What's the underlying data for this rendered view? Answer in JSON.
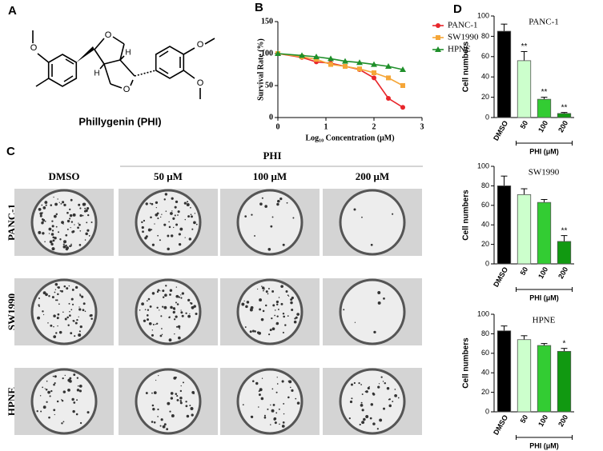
{
  "panel_labels": [
    "A",
    "B",
    "C",
    "D"
  ],
  "molecule": {
    "name": "Phillygenin (PHI)",
    "atoms": [
      "O",
      "O",
      "O",
      "O",
      "O",
      "H",
      "H"
    ]
  },
  "colony_assay": {
    "group_label": "PHI",
    "columns": [
      "DMSO",
      "50 μM",
      "100 μM",
      "200 μM"
    ],
    "rows": [
      "PANC-1",
      "SW1990",
      "HPNE"
    ]
  },
  "chart_data": [
    {
      "type": "line",
      "xlabel": "Log₁₀ Concentration (μM)",
      "ylabel": "Survival Rate (%)",
      "xlim": [
        0,
        3
      ],
      "xticks": [
        0,
        1,
        2,
        3
      ],
      "ylim": [
        0,
        150
      ],
      "yticks": [
        0,
        50,
        100,
        150
      ],
      "legend": "upper right",
      "x": [
        0,
        0.5,
        0.8,
        1.1,
        1.4,
        1.7,
        2,
        2.3,
        2.6
      ],
      "series": [
        {
          "name": "PANC-1",
          "color": "#e8262b",
          "marker": "circle",
          "values": [
            100,
            94,
            87,
            85,
            80,
            75,
            62,
            30,
            16
          ]
        },
        {
          "name": "SW1990",
          "color": "#f5a638",
          "marker": "square",
          "values": [
            100,
            95,
            91,
            83,
            80,
            76,
            70,
            62,
            50
          ]
        },
        {
          "name": "HPNE",
          "color": "#1f8f2a",
          "marker": "triangle",
          "values": [
            100,
            97,
            95,
            92,
            88,
            86,
            83,
            80,
            75
          ]
        }
      ]
    },
    {
      "type": "bar",
      "title": "PANC-1",
      "ylabel": "Cell numbers",
      "group_label": "PHI (μM)",
      "categories": [
        "DMSO",
        "50",
        "100",
        "200"
      ],
      "values": [
        85,
        56,
        18,
        4
      ],
      "errors": [
        7,
        9,
        2,
        1
      ],
      "annotations": [
        null,
        "**",
        "**",
        "**"
      ],
      "colors": [
        "#000000",
        "#ccffcc",
        "#33cc33",
        "#119911"
      ],
      "ylim": [
        0,
        100
      ],
      "yticks": [
        0,
        20,
        40,
        60,
        80,
        100
      ]
    },
    {
      "type": "bar",
      "title": "SW1990",
      "ylabel": "Cell numbers",
      "group_label": "PHI (μM)",
      "categories": [
        "DMSO",
        "50",
        "100",
        "200"
      ],
      "values": [
        80,
        71,
        63,
        23
      ],
      "errors": [
        10,
        6,
        3,
        6
      ],
      "annotations": [
        null,
        null,
        null,
        "**"
      ],
      "colors": [
        "#000000",
        "#ccffcc",
        "#33cc33",
        "#119911"
      ],
      "ylim": [
        0,
        100
      ],
      "yticks": [
        0,
        20,
        40,
        60,
        80,
        100
      ]
    },
    {
      "type": "bar",
      "title": "HPNE",
      "ylabel": "Cell numbers",
      "group_label": "PHI (μM)",
      "categories": [
        "DMSO",
        "50",
        "100",
        "200"
      ],
      "values": [
        83,
        74,
        68,
        62
      ],
      "errors": [
        5,
        4,
        2,
        3
      ],
      "annotations": [
        null,
        null,
        null,
        "*"
      ],
      "colors": [
        "#000000",
        "#ccffcc",
        "#33cc33",
        "#119911"
      ],
      "ylim": [
        0,
        100
      ],
      "yticks": [
        0,
        20,
        40,
        60,
        80,
        100
      ]
    }
  ]
}
